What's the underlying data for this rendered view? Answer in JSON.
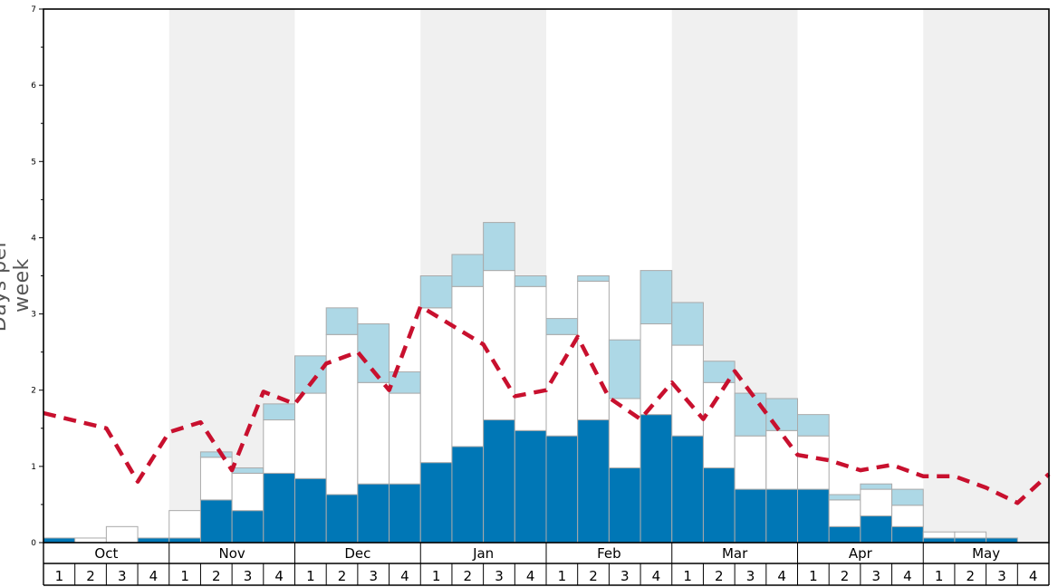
{
  "chart_data": {
    "type": "bar",
    "ylabel": "Days per week",
    "ylim": [
      0,
      7
    ],
    "yticks": [
      "0",
      "1",
      "2",
      "3",
      "4",
      "5",
      "6",
      "7"
    ],
    "months": [
      "Oct",
      "Nov",
      "Dec",
      "Jan",
      "Feb",
      "Mar",
      "Apr",
      "May"
    ],
    "weeks": [
      "1",
      "2",
      "3",
      "4"
    ],
    "stack_series": [
      {
        "color": "#0077b6",
        "values": [
          0.06,
          0,
          0,
          0.06,
          0.06,
          0.56,
          0.42,
          0.91,
          0.84,
          0.63,
          0.77,
          0.77,
          1.05,
          1.26,
          1.61,
          1.47,
          1.4,
          1.61,
          0.98,
          1.68,
          1.4,
          0.98,
          0.7,
          0.7,
          0.7,
          0.21,
          0.35,
          0.21,
          0.06,
          0.06,
          0.06,
          0
        ]
      },
      {
        "color": "#ffffff",
        "values": [
          0,
          0.06,
          0.21,
          0,
          0.36,
          0.56,
          0.49,
          0.7,
          1.12,
          2.1,
          1.33,
          1.19,
          2.03,
          2.1,
          1.96,
          1.89,
          1.33,
          1.82,
          0.91,
          1.19,
          1.19,
          1.12,
          0.7,
          0.77,
          0.7,
          0.35,
          0.35,
          0.28,
          0.08,
          0.08,
          0,
          0
        ]
      },
      {
        "color": "#add8e6",
        "values": [
          0,
          0,
          0,
          0,
          0,
          0.07,
          0.07,
          0.21,
          0.49,
          0.35,
          0.77,
          0.28,
          0.42,
          0.42,
          0.63,
          0.14,
          0.21,
          0.07,
          0.77,
          0.7,
          0.56,
          0.28,
          0.56,
          0.42,
          0.28,
          0.07,
          0.07,
          0.21,
          0,
          0,
          0,
          0
        ]
      }
    ],
    "line_series": {
      "color": "#c8102e",
      "style": "dashed",
      "values": [
        1.7,
        1.6,
        1.5,
        0.8,
        1.45,
        1.58,
        0.95,
        1.98,
        1.82,
        2.35,
        2.5,
        2.0,
        3.1,
        2.85,
        2.6,
        1.92,
        2.0,
        2.7,
        1.9,
        1.62,
        2.1,
        1.62,
        2.25,
        1.7,
        1.15,
        1.08,
        0.95,
        1.02,
        0.87,
        0.87,
        0.72,
        0.52,
        0.9
      ]
    },
    "grid": false,
    "month_shading": "alternating"
  }
}
